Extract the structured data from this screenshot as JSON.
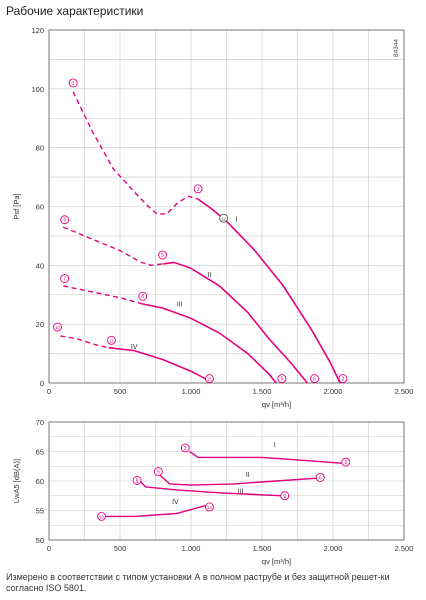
{
  "page": {
    "title": "Рабочие характеристики",
    "footnote": "Измерено в соответствии с типом установки А в полном раструбе и без защитной решет-ки согласно ISO 5801.",
    "diagram_code": "84344"
  },
  "colors": {
    "curve": "#e6007e",
    "grid": "#c8c8c8",
    "axis": "#555555"
  },
  "chart_data": [
    {
      "type": "line",
      "xlabel": "qv [m³/h]",
      "ylabel": "Psf [Pa]",
      "xlim": [
        0,
        2500
      ],
      "ylim": [
        0,
        120
      ],
      "x_ticks": [
        0,
        500,
        1000,
        1500,
        2000,
        2500
      ],
      "x_tick_labels": [
        "0",
        "500",
        "1.000",
        "1.500",
        "2.000",
        "2.500"
      ],
      "y_ticks": [
        0,
        20,
        40,
        60,
        80,
        100,
        120
      ],
      "y_tick_labels": [
        "0",
        "20",
        "40",
        "60",
        "80",
        "100",
        "120"
      ],
      "grid": true,
      "series": [
        {
          "name": "I",
          "dashed": [
            [
              170,
              99
            ],
            [
              300,
              86
            ],
            [
              450,
              73
            ],
            [
              600,
              65
            ],
            [
              700,
              60
            ],
            [
              760,
              57.5
            ],
            [
              830,
              57.5
            ],
            [
              900,
              61
            ],
            [
              980,
              63.5
            ],
            [
              1050,
              62.5
            ]
          ],
          "solid": [
            [
              1050,
              62.5
            ],
            [
              1150,
              59
            ],
            [
              1250,
              55
            ],
            [
              1450,
              45
            ],
            [
              1650,
              33
            ],
            [
              1850,
              18
            ],
            [
              1980,
              7
            ],
            [
              2050,
              0
            ]
          ]
        },
        {
          "name": "II",
          "dashed": [
            [
              100,
              53
            ],
            [
              300,
              49
            ],
            [
              500,
              45
            ],
            [
              650,
              41
            ],
            [
              720,
              40
            ],
            [
              800,
              40.5
            ]
          ],
          "solid": [
            [
              800,
              40.5
            ],
            [
              880,
              41
            ],
            [
              1000,
              39
            ],
            [
              1200,
              33
            ],
            [
              1400,
              24
            ],
            [
              1550,
              15
            ],
            [
              1700,
              7
            ],
            [
              1820,
              0
            ]
          ]
        },
        {
          "name": "III",
          "dashed": [
            [
              100,
              33
            ],
            [
              300,
              31
            ],
            [
              500,
              29
            ],
            [
              650,
              27
            ]
          ],
          "solid": [
            [
              650,
              27
            ],
            [
              800,
              25.5
            ],
            [
              1000,
              22
            ],
            [
              1200,
              17
            ],
            [
              1400,
              10
            ],
            [
              1550,
              3
            ],
            [
              1600,
              0
            ]
          ]
        },
        {
          "name": "IV",
          "dashed": [
            [
              80,
              16
            ],
            [
              200,
              15
            ],
            [
              330,
              13
            ],
            [
              420,
              12
            ]
          ],
          "solid": [
            [
              420,
              12
            ],
            [
              600,
              11
            ],
            [
              800,
              8
            ],
            [
              1000,
              4
            ],
            [
              1100,
              1.5
            ],
            [
              1130,
              0
            ]
          ]
        }
      ],
      "series_labels": [
        {
          "text": "I",
          "x": 1320,
          "y": 56
        },
        {
          "text": "II",
          "x": 1130,
          "y": 37
        },
        {
          "text": "III",
          "x": 920,
          "y": 27
        },
        {
          "text": "IV",
          "x": 600,
          "y": 12.5
        }
      ],
      "markers": [
        {
          "n": "1",
          "x": 170,
          "y": 102,
          "style": "pink"
        },
        {
          "n": "2",
          "x": 1050,
          "y": 66,
          "style": "pink"
        },
        {
          "n": "3",
          "x": 2070,
          "y": 1.5,
          "style": "pink"
        },
        {
          "n": "4",
          "x": 110,
          "y": 55.5,
          "style": "pink"
        },
        {
          "n": "5",
          "x": 800,
          "y": 43.5,
          "style": "pink"
        },
        {
          "n": "6",
          "x": 1870,
          "y": 1.5,
          "style": "pink"
        },
        {
          "n": "7",
          "x": 110,
          "y": 35.5,
          "style": "pink"
        },
        {
          "n": "8",
          "x": 660,
          "y": 29.5,
          "style": "pink"
        },
        {
          "n": "9",
          "x": 1640,
          "y": 1.5,
          "style": "pink"
        },
        {
          "n": "10",
          "x": 60,
          "y": 19,
          "style": "pink"
        },
        {
          "n": "11",
          "x": 440,
          "y": 14.5,
          "style": "pink"
        },
        {
          "n": "12",
          "x": 1230,
          "y": 56,
          "style": "grey"
        },
        {
          "n": "15",
          "x": 1130,
          "y": 1.5,
          "style": "pink"
        }
      ]
    },
    {
      "type": "line",
      "xlabel": "qv [m³/h]",
      "ylabel": "LwA5 [dB(A)]",
      "xlim": [
        0,
        2500
      ],
      "ylim": [
        50,
        70
      ],
      "x_ticks": [
        0,
        500,
        1000,
        1500,
        2000,
        2500
      ],
      "x_tick_labels": [
        "0",
        "500",
        "1.000",
        "1.500",
        "2.000",
        "2.500"
      ],
      "y_ticks": [
        50,
        55,
        60,
        65,
        70
      ],
      "y_tick_labels": [
        "50",
        "55",
        "60",
        "65",
        "70"
      ],
      "grid": true,
      "series": [
        {
          "name": "I",
          "points": [
            [
              990,
              65
            ],
            [
              1050,
              64
            ],
            [
              1500,
              64
            ],
            [
              1800,
              63.5
            ],
            [
              2070,
              63
            ]
          ]
        },
        {
          "name": "II",
          "points": [
            [
              780,
              61
            ],
            [
              850,
              59.5
            ],
            [
              1000,
              59.3
            ],
            [
              1300,
              59.5
            ],
            [
              1600,
              60
            ],
            [
              1900,
              60.5
            ]
          ]
        },
        {
          "name": "III",
          "points": [
            [
              640,
              60
            ],
            [
              680,
              59
            ],
            [
              900,
              58.5
            ],
            [
              1200,
              58
            ],
            [
              1640,
              57.5
            ]
          ]
        },
        {
          "name": "IV",
          "points": [
            [
              370,
              54
            ],
            [
              600,
              54
            ],
            [
              900,
              54.5
            ],
            [
              1050,
              55.5
            ],
            [
              1130,
              56
            ]
          ]
        }
      ],
      "series_labels": [
        {
          "text": "I",
          "x": 1590,
          "y": 66.3
        },
        {
          "text": "II",
          "x": 1400,
          "y": 61.2
        },
        {
          "text": "III",
          "x": 1350,
          "y": 58.4
        },
        {
          "text": "IV",
          "x": 890,
          "y": 56.6
        }
      ],
      "markers": [
        {
          "n": "2",
          "x": 960,
          "y": 65.6,
          "style": "pink"
        },
        {
          "n": "3",
          "x": 2090,
          "y": 63.2,
          "style": "pink"
        },
        {
          "n": "5",
          "x": 770,
          "y": 61.6,
          "style": "pink"
        },
        {
          "n": "6",
          "x": 1910,
          "y": 60.6,
          "style": "pink"
        },
        {
          "n": "8",
          "x": 620,
          "y": 60.1,
          "style": "pink"
        },
        {
          "n": "9",
          "x": 1660,
          "y": 57.5,
          "style": "pink"
        },
        {
          "n": "10",
          "x": 370,
          "y": 54,
          "style": "pink"
        },
        {
          "n": "14",
          "x": 1130,
          "y": 55.6,
          "style": "pink"
        }
      ]
    }
  ]
}
